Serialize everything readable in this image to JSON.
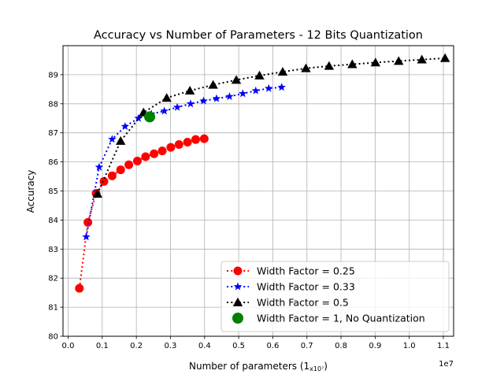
{
  "chart_data": {
    "type": "line",
    "title": "Accuracy vs Number of Parameters - 12 Bits Quantization",
    "xlabel_main": "Number of parameters (",
    "xlabel_sub": "1",
    "xlabel_sup": "x10⁷",
    "xlabel_close": ")",
    "ylabel": "Accuracy",
    "x_offset_text": "1e7",
    "xlim": [
      -0.15,
      11.3
    ],
    "ylim": [
      80,
      90
    ],
    "xticks": [
      0.0,
      0.1,
      0.2,
      0.3,
      0.4,
      0.5,
      0.6,
      0.7,
      0.8,
      0.9,
      1.0,
      1.1
    ],
    "yticks": [
      80,
      81,
      82,
      83,
      84,
      85,
      86,
      87,
      88,
      89
    ],
    "grid": true,
    "legend_position": "lower-right",
    "series": [
      {
        "name": "Width Factor = 0.25",
        "color": "#ff0000",
        "marker": "circle",
        "linestyle": "dotted",
        "x": [
          0.33,
          0.58,
          0.82,
          1.05,
          1.29,
          1.54,
          1.78,
          2.03,
          2.27,
          2.52,
          2.76,
          3.01,
          3.25,
          3.5,
          3.74,
          3.99
        ],
        "y": [
          81.65,
          83.92,
          84.92,
          85.33,
          85.52,
          85.73,
          85.9,
          86.03,
          86.18,
          86.28,
          86.38,
          86.5,
          86.6,
          86.68,
          86.77,
          86.8
        ]
      },
      {
        "name": "Width Factor = 0.33",
        "color": "#0000ff",
        "marker": "star",
        "linestyle": "dotted",
        "x": [
          0.53,
          0.91,
          1.29,
          1.67,
          2.06,
          2.44,
          2.82,
          3.2,
          3.59,
          3.97,
          4.35,
          4.73,
          5.12,
          5.5,
          5.88,
          6.26
        ],
        "y": [
          83.42,
          85.82,
          86.78,
          87.22,
          87.5,
          87.65,
          87.75,
          87.88,
          88.0,
          88.1,
          88.18,
          88.25,
          88.35,
          88.45,
          88.53,
          88.57
        ]
      },
      {
        "name": "Width Factor = 0.5",
        "color": "#000000",
        "marker": "triangle",
        "linestyle": "dotted",
        "x": [
          0.86,
          1.54,
          2.21,
          2.89,
          3.57,
          4.25,
          4.93,
          5.61,
          6.29,
          6.97,
          7.65,
          8.33,
          9.01,
          9.69,
          10.37,
          11.05
        ],
        "y": [
          84.9,
          86.72,
          87.7,
          88.2,
          88.45,
          88.65,
          88.82,
          88.97,
          89.1,
          89.22,
          89.3,
          89.36,
          89.42,
          89.47,
          89.52,
          89.57
        ]
      },
      {
        "name": "Width Factor = 1, No Quantization",
        "color": "#008000",
        "marker": "big-circle",
        "linestyle": "none",
        "x": [
          2.39
        ],
        "y": [
          87.55
        ]
      }
    ]
  }
}
